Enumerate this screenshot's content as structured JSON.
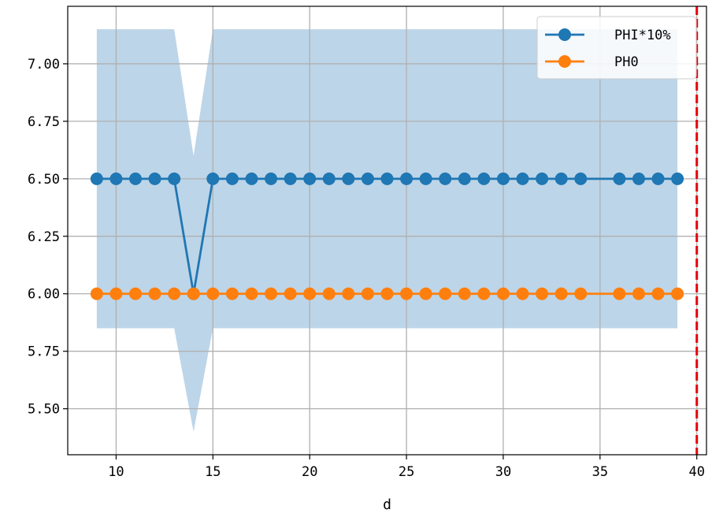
{
  "chart_data": {
    "type": "line",
    "title": "",
    "xlabel": "d",
    "ylabel": "",
    "xlim": [
      7.5,
      40.5
    ],
    "ylim": [
      5.3,
      7.25
    ],
    "grid": true,
    "legend_position": "top-right",
    "x_ticks": [
      10,
      15,
      20,
      25,
      30,
      35,
      40
    ],
    "y_ticks": [
      5.5,
      5.75,
      6.0,
      6.25,
      6.5,
      6.75,
      7.0
    ],
    "x_tick_labels": [
      "10",
      "15",
      "20",
      "25",
      "30",
      "35",
      "40"
    ],
    "y_tick_labels": [
      "5.50",
      "5.75",
      "6.00",
      "6.25",
      "6.50",
      "6.75",
      "7.00"
    ],
    "band": {
      "color": "#bdd5e8",
      "x": [
        9,
        13,
        14,
        15,
        39
      ],
      "upper": [
        7.15,
        7.15,
        6.6,
        7.15,
        7.15
      ],
      "lower": [
        5.85,
        5.85,
        5.4,
        5.85,
        5.85
      ]
    },
    "series": [
      {
        "name": "PHI*10%",
        "color": "#1f77b4",
        "x": [
          9,
          10,
          11,
          12,
          13,
          14,
          15,
          16,
          17,
          18,
          19,
          20,
          21,
          22,
          23,
          24,
          25,
          26,
          27,
          28,
          29,
          30,
          31,
          32,
          33,
          34,
          36,
          37,
          38,
          39
        ],
        "y": [
          6.5,
          6.5,
          6.5,
          6.5,
          6.5,
          6.0,
          6.5,
          6.5,
          6.5,
          6.5,
          6.5,
          6.5,
          6.5,
          6.5,
          6.5,
          6.5,
          6.5,
          6.5,
          6.5,
          6.5,
          6.5,
          6.5,
          6.5,
          6.5,
          6.5,
          6.5,
          6.5,
          6.5,
          6.5,
          6.5
        ]
      },
      {
        "name": "PH0",
        "color": "#ff7f0e",
        "x": [
          9,
          10,
          11,
          12,
          13,
          14,
          15,
          16,
          17,
          18,
          19,
          20,
          21,
          22,
          23,
          24,
          25,
          26,
          27,
          28,
          29,
          30,
          31,
          32,
          33,
          34,
          36,
          37,
          38,
          39
        ],
        "y": [
          6.0,
          6.0,
          6.0,
          6.0,
          6.0,
          6.0,
          6.0,
          6.0,
          6.0,
          6.0,
          6.0,
          6.0,
          6.0,
          6.0,
          6.0,
          6.0,
          6.0,
          6.0,
          6.0,
          6.0,
          6.0,
          6.0,
          6.0,
          6.0,
          6.0,
          6.0,
          6.0,
          6.0,
          6.0,
          6.0
        ]
      }
    ],
    "vline": {
      "x": 40,
      "color": "#e8000b",
      "style": "dashed"
    }
  }
}
